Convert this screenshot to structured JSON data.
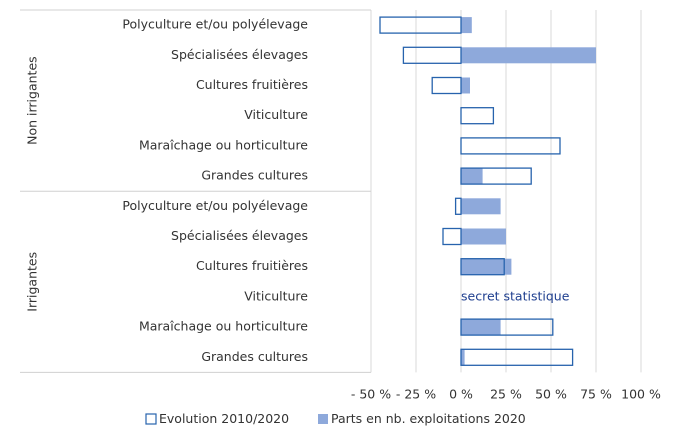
{
  "chart_data": {
    "type": "hbar",
    "groups": [
      {
        "name": "Non irrigantes",
        "categories": [
          "Polyculture et/ou polyélevage",
          "Spécialisées élevages",
          "Cultures fruitières",
          "Viticulture",
          "Maraîchage ou horticulture",
          "Grandes cultures"
        ]
      },
      {
        "name": "Irrigantes",
        "categories": [
          "Polyculture et/ou polyélevage",
          "Spécialisées élevages",
          "Cultures fruitières",
          "Viticulture",
          "Maraîchage ou horticulture",
          "Grandes cultures"
        ]
      }
    ],
    "series": [
      {
        "name": "Evolution 2010/2020",
        "color": "#2763ad",
        "style": "outline",
        "values": [
          -45,
          -32,
          -16,
          18,
          55,
          39,
          -3,
          -10,
          24,
          null,
          51,
          62
        ]
      },
      {
        "name": "Parts en nb. exploitations 2020",
        "color": "#8ea9db",
        "style": "filled",
        "values": [
          6,
          75,
          5,
          0,
          0,
          12,
          22,
          25,
          28,
          null,
          22,
          2
        ]
      }
    ],
    "annotation": "secret statistique",
    "annotation_color": "#1f3f8f",
    "xlim": [
      -50,
      100
    ],
    "xticks": [
      {
        "value": -50,
        "label": "- 50 %"
      },
      {
        "value": -25,
        "label": "- 25 %"
      },
      {
        "value": 0,
        "label": "0 %"
      },
      {
        "value": 25,
        "label": "25 %"
      },
      {
        "value": 50,
        "label": "50 %"
      },
      {
        "value": 75,
        "label": "75 %"
      },
      {
        "value": 100,
        "label": "100 %"
      }
    ],
    "grid": true
  }
}
